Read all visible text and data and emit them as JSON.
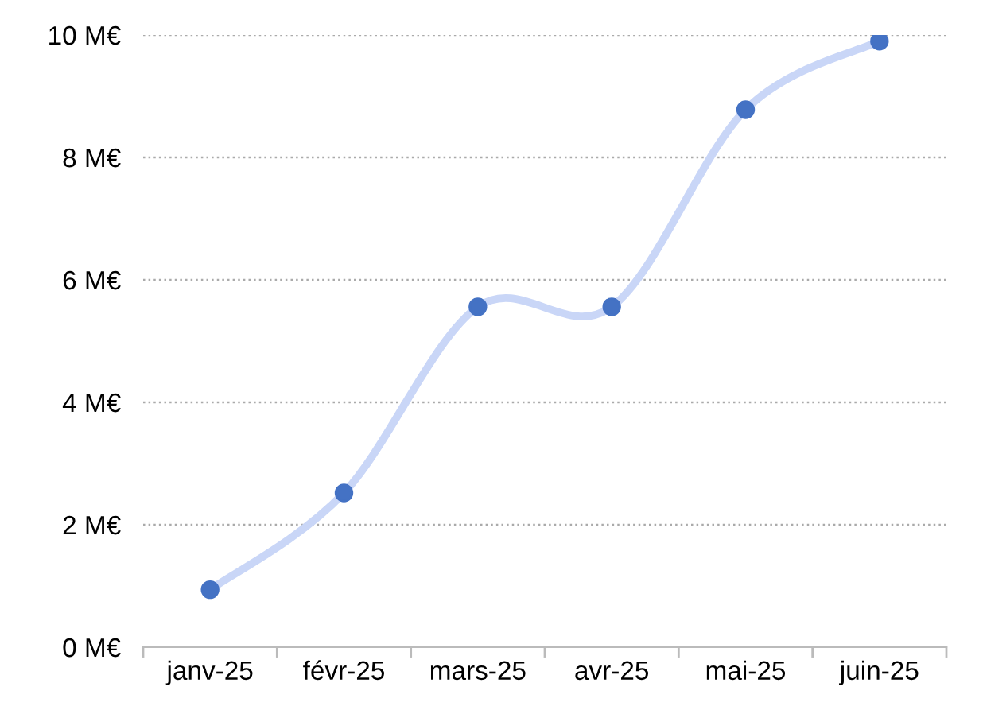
{
  "chart_data": {
    "type": "line",
    "categories": [
      "janv-25",
      "févr-25",
      "mars-25",
      "avr-25",
      "mai-25",
      "juin-25"
    ],
    "series": [
      {
        "color": "#c9d6f7",
        "marker": "none",
        "values": [
          0.94,
          2.52,
          5.56,
          5.56,
          8.78,
          9.9
        ]
      },
      {
        "type": "scatter",
        "color": "#4472c4",
        "marker": "circle",
        "values": [
          0.94,
          2.52,
          5.56,
          5.56,
          8.78,
          9.9
        ]
      }
    ],
    "ylim": [
      0,
      10
    ],
    "yticks": [
      {
        "value": 0,
        "label": "0 M€"
      },
      {
        "value": 2,
        "label": "2 M€"
      },
      {
        "value": 4,
        "label": "4 M€"
      },
      {
        "value": 6,
        "label": "6 M€"
      },
      {
        "value": 8,
        "label": "8 M€"
      },
      {
        "value": 10,
        "label": "10 M€"
      }
    ],
    "grid": "y",
    "legend": false,
    "line_style": "solid"
  }
}
